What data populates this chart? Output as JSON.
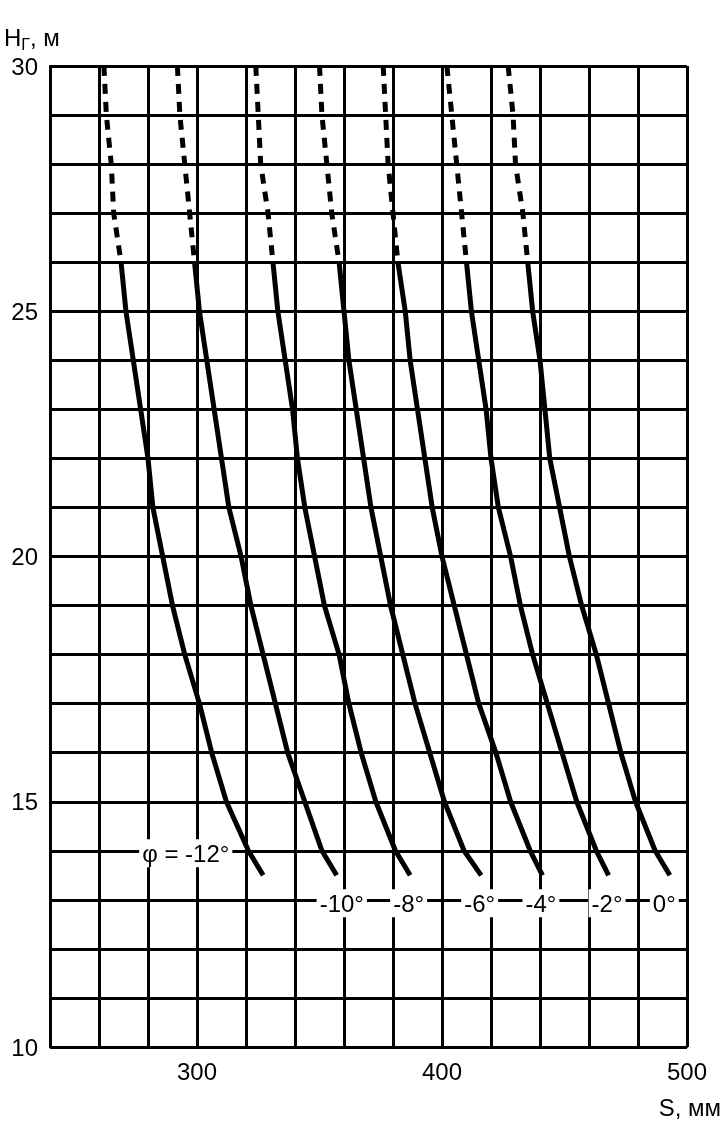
{
  "chart_data": {
    "type": "line",
    "xlabel": "S, мм",
    "ylabel": "H$_{Г}$, м",
    "xlim": [
      240,
      500
    ],
    "xticks": [
      {
        "value": 240,
        "label": null
      },
      {
        "value": 260,
        "label": null
      },
      {
        "value": 280,
        "label": null
      },
      300,
      {
        "value": 320,
        "label": null
      },
      {
        "value": 340,
        "label": null
      },
      {
        "value": 360,
        "label": null
      },
      {
        "value": 380,
        "label": null
      },
      400,
      {
        "value": 420,
        "label": null
      },
      {
        "value": 440,
        "label": null
      },
      {
        "value": 460,
        "label": null
      },
      {
        "value": 480,
        "label": null
      },
      500
    ],
    "ylim": [
      10,
      30
    ],
    "yticks": [
      10,
      {
        "value": 11,
        "label": null
      },
      {
        "value": 12,
        "label": null
      },
      {
        "value": 13,
        "label": null
      },
      {
        "value": 14,
        "label": null
      },
      15,
      {
        "value": 16,
        "label": null
      },
      {
        "value": 17,
        "label": null
      },
      {
        "value": 18,
        "label": null
      },
      {
        "value": 19,
        "label": null
      },
      20,
      {
        "value": 21,
        "label": null
      },
      {
        "value": 22,
        "label": null
      },
      {
        "value": 23,
        "label": null
      },
      {
        "value": 24,
        "label": null
      },
      25,
      {
        "value": 26,
        "label": null
      },
      {
        "value": 27,
        "label": null
      },
      {
        "value": 28,
        "label": null
      },
      {
        "value": 29,
        "label": null
      },
      30
    ],
    "grid": true,
    "legend": false,
    "marker": "none",
    "line_style": "solid",
    "series": [
      {
        "name": "φ = -12°",
        "color": "#000000",
        "x": [
          269,
          271,
          274,
          277,
          280,
          282,
          286,
          290,
          295,
          301,
          306,
          312,
          321,
          327
        ],
        "values": [
          26,
          25,
          24,
          23,
          22,
          21,
          20,
          19,
          18,
          17,
          16,
          15,
          14,
          13.5
        ]
      },
      {
        "name": "-10°",
        "color": "#000000",
        "x": [
          299,
          301,
          304,
          307,
          310,
          313,
          318,
          322,
          327,
          332,
          337,
          344,
          351,
          357
        ],
        "values": [
          26,
          25,
          24,
          23,
          22,
          21,
          20,
          19,
          18,
          17,
          16,
          15,
          14,
          13.5
        ]
      },
      {
        "name": "-8°",
        "color": "#000000",
        "x": [
          331,
          333,
          336,
          339,
          341,
          344,
          348,
          352,
          358,
          362,
          367,
          373,
          381,
          387
        ],
        "values": [
          26,
          25,
          24,
          23,
          22,
          21,
          20,
          19,
          18,
          17,
          16,
          15,
          14,
          13.5
        ]
      },
      {
        "name": "-6°",
        "color": "#000000",
        "x": [
          358,
          360,
          362,
          365,
          368,
          371,
          375,
          379,
          384,
          389,
          395,
          401,
          409,
          416
        ],
        "values": [
          26,
          25,
          24,
          23,
          22,
          21,
          20,
          19,
          18,
          17,
          16,
          15,
          14,
          13.5
        ]
      },
      {
        "name": "-4°",
        "color": "#000000",
        "x": [
          382,
          385,
          387,
          390,
          393,
          396,
          400,
          405,
          410,
          415,
          422,
          428,
          436,
          441
        ],
        "values": [
          26,
          25,
          24,
          23,
          22,
          21,
          20,
          19,
          18,
          17,
          16,
          15,
          14,
          13.5
        ]
      },
      {
        "name": "-2°",
        "color": "#000000",
        "x": [
          410,
          412,
          415,
          418,
          420,
          423,
          428,
          432,
          437,
          443,
          449,
          455,
          463,
          468
        ],
        "values": [
          26,
          25,
          24,
          23,
          22,
          21,
          20,
          19,
          18,
          17,
          16,
          15,
          14,
          13.5
        ]
      },
      {
        "name": "0°",
        "color": "#000000",
        "x": [
          435,
          437,
          440,
          442,
          444,
          448,
          452,
          457,
          463,
          468,
          473,
          479,
          487,
          493
        ],
        "values": [
          26,
          25,
          24,
          23,
          22,
          21,
          20,
          19,
          18,
          17,
          16,
          15,
          14,
          13.5
        ]
      },
      {
        "color": "#000000",
        "line_style": "dashed",
        "x": [
          262,
          263,
          265,
          266,
          269
        ],
        "values": [
          30,
          29,
          28,
          27,
          26
        ]
      },
      {
        "color": "#000000",
        "line_style": "dashed",
        "x": [
          292,
          293,
          295,
          297,
          299
        ],
        "values": [
          30,
          29,
          28,
          27,
          26
        ]
      },
      {
        "color": "#000000",
        "line_style": "dashed",
        "x": [
          324,
          325,
          326,
          329,
          331
        ],
        "values": [
          30,
          29,
          28,
          27,
          26
        ]
      },
      {
        "color": "#000000",
        "line_style": "dashed",
        "x": [
          350,
          351,
          353,
          355,
          358
        ],
        "values": [
          30,
          29,
          28,
          27,
          26
        ]
      },
      {
        "color": "#000000",
        "line_style": "dashed",
        "x": [
          376,
          377,
          378,
          380,
          382
        ],
        "values": [
          30,
          29,
          28,
          27,
          26
        ]
      },
      {
        "color": "#000000",
        "line_style": "dashed",
        "x": [
          402,
          404,
          406,
          408,
          410
        ],
        "values": [
          30,
          29,
          28,
          27,
          26
        ]
      },
      {
        "color": "#000000",
        "line_style": "dashed",
        "x": [
          427,
          429,
          430,
          433,
          435
        ],
        "values": [
          30,
          29,
          28,
          27,
          26
        ]
      }
    ]
  }
}
